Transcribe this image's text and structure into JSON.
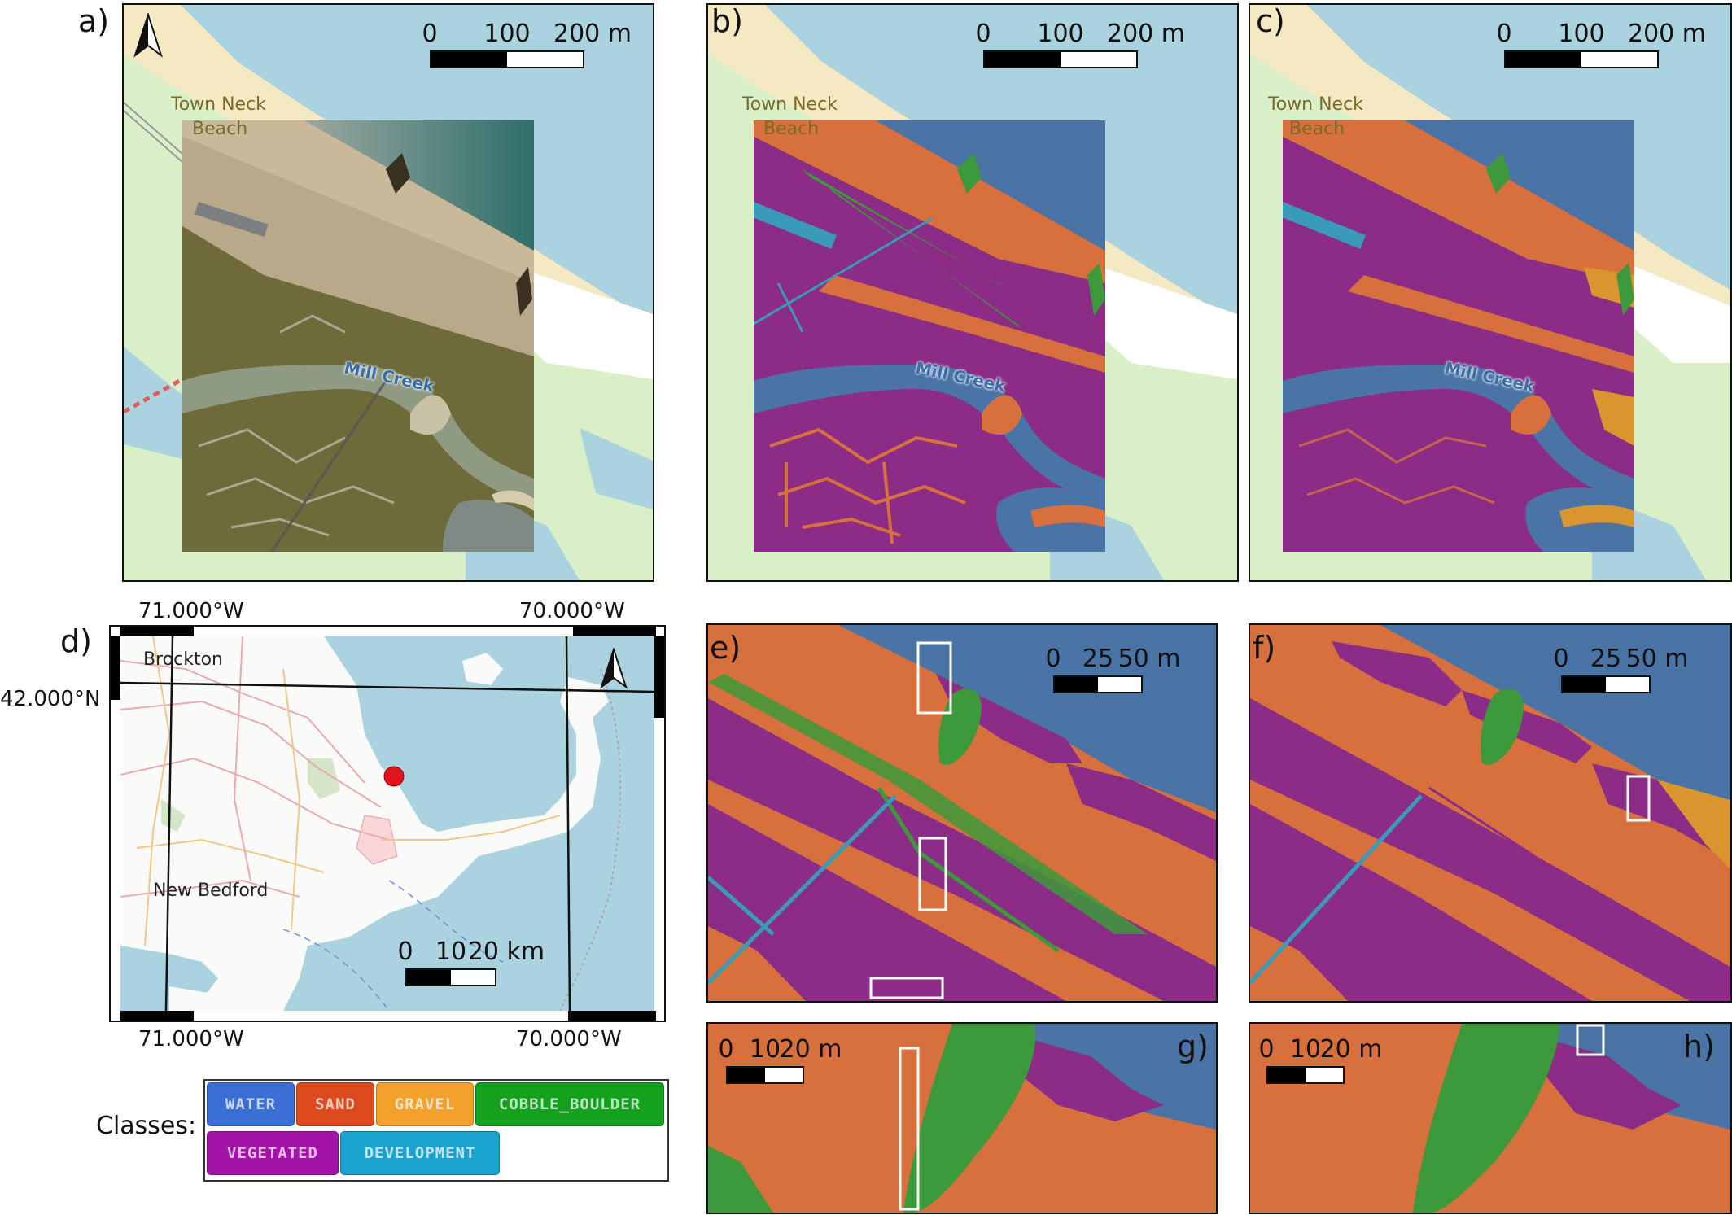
{
  "panels": {
    "a": "a)",
    "b": "b)",
    "c": "c)",
    "d": "d)",
    "e": "e)",
    "f": "f)",
    "g": "g)",
    "h": "h)"
  },
  "scalebars": {
    "a": {
      "ticks": [
        "0",
        "100",
        "200 m"
      ]
    },
    "b": {
      "ticks": [
        "0",
        "100",
        "200 m"
      ]
    },
    "c": {
      "ticks": [
        "0",
        "100",
        "200 m"
      ]
    },
    "d": {
      "ticks": [
        "0",
        "10",
        "20 km"
      ]
    },
    "e": {
      "ticks": [
        "0",
        "25",
        "50 m"
      ]
    },
    "f": {
      "ticks": [
        "0",
        "25",
        "50 m"
      ]
    },
    "g": {
      "ticks": [
        "0",
        "10",
        "20 m"
      ]
    },
    "h": {
      "ticks": [
        "0",
        "10",
        "20 m"
      ]
    }
  },
  "places": {
    "town_neck": "Town Neck",
    "beach": "Beach",
    "mill_creek": "Mill Creek"
  },
  "overview": {
    "lon_left": "71.000°W",
    "lon_right": "70.000°W",
    "lat": "42.000°N",
    "brockton": "Brockton",
    "new_bedford": "New Bedford"
  },
  "legend": {
    "title": "Classes:",
    "classes": [
      {
        "label": "WATER",
        "color": "#3b6fd6"
      },
      {
        "label": "SAND",
        "color": "#dc4a1e"
      },
      {
        "label": "GRAVEL",
        "color": "#f4a12b"
      },
      {
        "label": "COBBLE_BOULDER",
        "color": "#14a11e"
      },
      {
        "label": "VEGETATED",
        "color": "#a313a8"
      },
      {
        "label": "DEVELOPMENT",
        "color": "#1aa3cf"
      }
    ]
  },
  "colors": {
    "osm_water": "#aad3df",
    "osm_sand": "#f5e9c4",
    "osm_marsh": "#d9efc8",
    "seg_sand": "#d8703e",
    "seg_vegetated": "#8b2d86",
    "seg_water": "#4b74a6",
    "seg_cobble": "#3c9a3a",
    "seg_development": "#3a9aba",
    "seg_gravel": "#d9952e",
    "photo_marsh": "#6e6a3a",
    "photo_sand": "#c9b89a",
    "location_marker": "#e0141a"
  }
}
